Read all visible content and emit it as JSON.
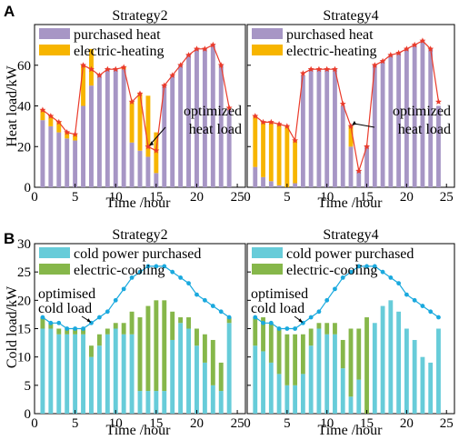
{
  "colors": {
    "purchased_heat": "#a796c5",
    "electric_heating": "#f7b500",
    "heat_line": "#ea3b2b",
    "cold_purchased": "#67ccd9",
    "electric_cooling": "#86b74a",
    "cold_line": "#1aa9de"
  },
  "panels": {
    "A": {
      "label": "A",
      "ylabel": "Heat load/kW",
      "xlabel": "Time /hour",
      "legend": [
        "purchased heat",
        "electric-heating"
      ],
      "annotation": [
        "optimized",
        "heat load"
      ]
    },
    "B": {
      "label": "B",
      "ylabel": "Cold load/kW",
      "xlabel": "Time /hour",
      "legend": [
        "cold power purchased",
        "electric-cooling"
      ],
      "annotation": [
        "optimised",
        "cold load"
      ]
    }
  },
  "chart_data": [
    {
      "type": "bar",
      "panel": "A",
      "title": "Strategy2",
      "xlabel": "Time /hour",
      "ylabel": "Heat load/kW",
      "xlim": [
        0,
        26
      ],
      "ylim": [
        0,
        80
      ],
      "xticks": [
        0,
        5,
        10,
        15,
        20,
        25
      ],
      "yticks": [
        0,
        20,
        40,
        60
      ],
      "x": [
        1,
        2,
        3,
        4,
        5,
        6,
        7,
        8,
        9,
        10,
        11,
        12,
        13,
        14,
        15,
        16,
        17,
        18,
        19,
        20,
        21,
        22,
        23,
        24
      ],
      "series": [
        {
          "name": "purchased heat",
          "values": [
            33,
            30,
            27,
            24,
            23,
            40,
            50,
            55,
            58,
            58,
            58,
            22,
            18,
            15,
            7,
            50,
            55,
            60,
            65,
            68,
            68,
            70,
            60,
            38
          ]
        },
        {
          "name": "electric-heating",
          "values": [
            5,
            5,
            5,
            3,
            3,
            20,
            18,
            0,
            0,
            0,
            1,
            20,
            28,
            30,
            20,
            0,
            0,
            0,
            0,
            0,
            0,
            0,
            0,
            0
          ]
        },
        {
          "name": "optimized heat load",
          "values": [
            38,
            35,
            32,
            27,
            26,
            60,
            58,
            55,
            58,
            58,
            59,
            42,
            46,
            20,
            18,
            50,
            55,
            60,
            65,
            68,
            68,
            70,
            60,
            39
          ]
        }
      ]
    },
    {
      "type": "bar",
      "panel": "A",
      "title": "Strategy4",
      "xlabel": "Time /hour",
      "ylabel": "Heat load/kW",
      "xlim": [
        0,
        26
      ],
      "ylim": [
        0,
        80
      ],
      "xticks": [
        0,
        5,
        10,
        15,
        20,
        25
      ],
      "yticks": [
        0,
        20,
        40,
        60
      ],
      "x": [
        1,
        2,
        3,
        4,
        5,
        6,
        7,
        8,
        9,
        10,
        11,
        12,
        13,
        14,
        15,
        16,
        17,
        18,
        19,
        20,
        21,
        22,
        23,
        24
      ],
      "series": [
        {
          "name": "purchased heat",
          "values": [
            10,
            5,
            3,
            1,
            0,
            2,
            55,
            58,
            58,
            58,
            58,
            40,
            20,
            8,
            20,
            60,
            62,
            65,
            66,
            68,
            70,
            72,
            68,
            40
          ]
        },
        {
          "name": "electric-heating",
          "values": [
            25,
            27,
            29,
            30,
            30,
            21,
            0,
            0,
            0,
            0,
            0,
            0,
            10,
            0,
            0,
            0,
            0,
            0,
            0,
            0,
            0,
            0,
            0,
            0
          ]
        },
        {
          "name": "optimized heat load",
          "values": [
            35,
            32,
            32,
            31,
            30,
            23,
            56,
            58,
            58,
            58,
            58,
            41,
            30,
            8,
            20,
            60,
            62,
            65,
            66,
            68,
            70,
            72,
            68,
            42
          ]
        }
      ]
    },
    {
      "type": "bar",
      "panel": "B",
      "title": "Strategy2",
      "xlabel": "Time /hour",
      "ylabel": "Cold load/kW",
      "xlim": [
        0,
        26
      ],
      "ylim": [
        0,
        30
      ],
      "xticks": [
        0,
        5,
        10,
        15,
        20,
        25
      ],
      "yticks": [
        0,
        5,
        10,
        15,
        20,
        25,
        30
      ],
      "x": [
        1,
        2,
        3,
        4,
        5,
        6,
        7,
        8,
        9,
        10,
        11,
        12,
        13,
        14,
        15,
        16,
        17,
        18,
        19,
        20,
        21,
        22,
        23,
        24
      ],
      "series": [
        {
          "name": "cold power purchased",
          "values": [
            15,
            15,
            14,
            14,
            14,
            14,
            10,
            12,
            14,
            15,
            14,
            14,
            4,
            4,
            4,
            4,
            13,
            16,
            15,
            12,
            9,
            5,
            4,
            16
          ]
        },
        {
          "name": "electric-cooling",
          "values": [
            2,
            1,
            1,
            1,
            1,
            1,
            2,
            2,
            1,
            1,
            2,
            4,
            13,
            15,
            16,
            16,
            5,
            1,
            2,
            3,
            5,
            8,
            5,
            1
          ]
        },
        {
          "name": "optimised cold load",
          "values": [
            17,
            16,
            16,
            15,
            15,
            15,
            16,
            17,
            18,
            20,
            22,
            24,
            25,
            26,
            26,
            26,
            25,
            24,
            23,
            21,
            20,
            19,
            18,
            17
          ]
        }
      ]
    },
    {
      "type": "bar",
      "panel": "B",
      "title": "Strategy4",
      "xlabel": "Time /hour",
      "ylabel": "Cold load/kW",
      "xlim": [
        0,
        26
      ],
      "ylim": [
        0,
        30
      ],
      "xticks": [
        0,
        5,
        10,
        15,
        20,
        25
      ],
      "yticks": [
        0,
        5,
        10,
        15,
        20,
        25,
        30
      ],
      "x": [
        1,
        2,
        3,
        4,
        5,
        6,
        7,
        8,
        9,
        10,
        11,
        12,
        13,
        14,
        15,
        16,
        17,
        18,
        19,
        20,
        21,
        22,
        23,
        24
      ],
      "series": [
        {
          "name": "cold power purchased",
          "values": [
            12,
            11,
            9,
            7,
            5,
            5,
            7,
            12,
            15,
            14,
            14,
            8,
            3,
            6,
            0,
            16,
            19,
            20,
            18,
            15,
            13,
            10,
            9,
            15
          ]
        },
        {
          "name": "electric-cooling",
          "values": [
            5,
            6,
            7,
            8,
            9,
            9,
            7,
            3,
            1,
            2,
            2,
            5,
            12,
            9,
            17,
            0,
            0,
            0,
            0,
            0,
            0,
            0,
            0,
            0
          ]
        },
        {
          "name": "optimised cold load",
          "values": [
            17,
            16,
            16,
            15,
            15,
            15,
            16,
            17,
            18,
            20,
            22,
            24,
            25,
            26,
            26,
            26,
            25,
            24,
            23,
            21,
            20,
            19,
            18,
            17
          ]
        }
      ]
    }
  ]
}
